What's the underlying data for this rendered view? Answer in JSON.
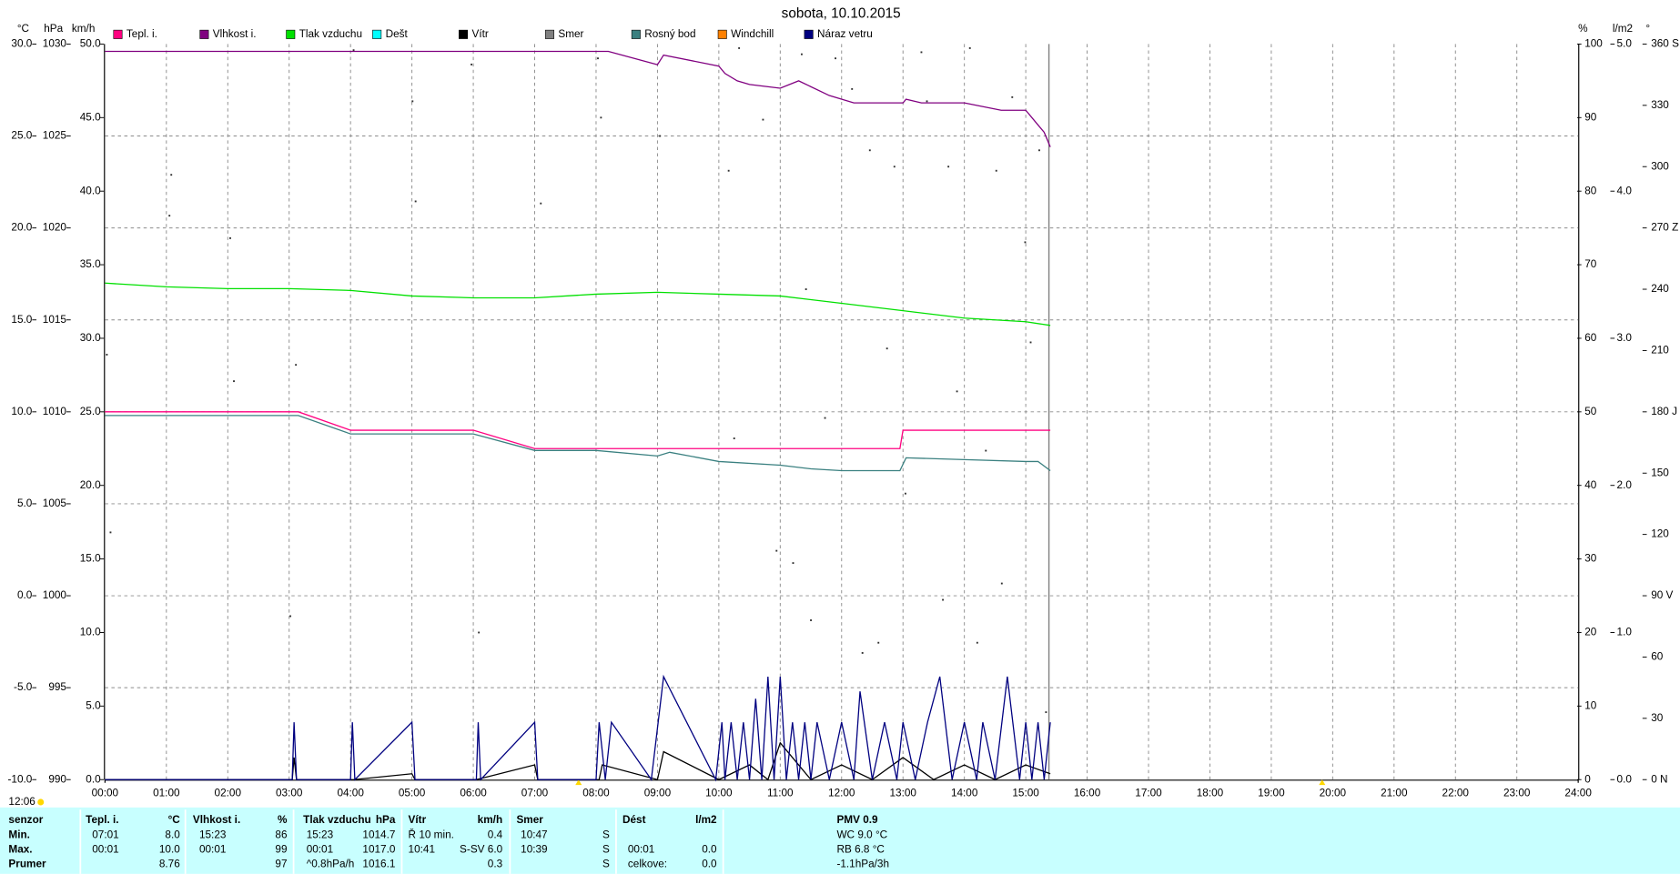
{
  "chart_data": {
    "type": "line",
    "title": "sobota, 10.10.2015",
    "xlim": [
      0,
      24
    ],
    "xgrid": true,
    "xticks": [
      {
        "value": 0,
        "label": "00:00"
      },
      {
        "value": 1,
        "label": "01:00"
      },
      {
        "value": 2,
        "label": "02:00"
      },
      {
        "value": 3,
        "label": "03:00"
      },
      {
        "value": 4,
        "label": "04:00"
      },
      {
        "value": 5,
        "label": "05:00"
      },
      {
        "value": 6,
        "label": "06:00"
      },
      {
        "value": 7,
        "label": "07:00"
      },
      {
        "value": 8,
        "label": "08:00"
      },
      {
        "value": 9,
        "label": "09:00"
      },
      {
        "value": 10,
        "label": "10:00"
      },
      {
        "value": 11,
        "label": "11:00"
      },
      {
        "value": 12,
        "label": "12:00"
      },
      {
        "value": 13,
        "label": "13:00"
      },
      {
        "value": 14,
        "label": "14:00"
      },
      {
        "value": 15,
        "label": "15:00"
      },
      {
        "value": 16,
        "label": "16:00"
      },
      {
        "value": 17,
        "label": "17:00"
      },
      {
        "value": 18,
        "label": "18:00"
      },
      {
        "value": 19,
        "label": "19:00"
      },
      {
        "value": 20,
        "label": "20:00"
      },
      {
        "value": 21,
        "label": "21:00"
      },
      {
        "value": 22,
        "label": "22:00"
      },
      {
        "value": 23,
        "label": "23:00"
      },
      {
        "value": 24,
        "label": "24:00"
      }
    ],
    "axes": [
      {
        "title": "°C",
        "color": "#ff0080",
        "side": "left",
        "grid": true,
        "lim": [
          -10,
          30
        ],
        "ticks": [
          {
            "value": -10,
            "label": "-10.0"
          },
          {
            "value": -5,
            "label": "-5.0"
          },
          {
            "value": 0,
            "label": "0.0"
          },
          {
            "value": 5,
            "label": "5.0"
          },
          {
            "value": 10,
            "label": "10.0"
          },
          {
            "value": 15,
            "label": "15.0"
          },
          {
            "value": 20,
            "label": "20.0"
          },
          {
            "value": 25,
            "label": "25.0"
          },
          {
            "value": 30,
            "label": "30.0"
          }
        ]
      },
      {
        "title": "hPa",
        "color": "#00c000",
        "side": "left",
        "lim": [
          990,
          1030
        ],
        "ticks": [
          990,
          995,
          1000,
          1005,
          1010,
          1015,
          1020,
          1025,
          1030
        ]
      },
      {
        "title": "km/h",
        "color": "#000000",
        "side": "left",
        "lim": [
          0,
          50
        ],
        "ticks": [
          {
            "value": 0,
            "label": "0.0"
          },
          {
            "value": 5,
            "label": "5.0"
          },
          {
            "value": 10,
            "label": "10.0"
          },
          {
            "value": 15,
            "label": "15.0"
          },
          {
            "value": 20,
            "label": "20.0"
          },
          {
            "value": 25,
            "label": "25.0"
          },
          {
            "value": 30,
            "label": "30.0"
          },
          {
            "value": 35,
            "label": "35.0"
          },
          {
            "value": 40,
            "label": "40.0"
          },
          {
            "value": 45,
            "label": "45.0"
          },
          {
            "value": 50,
            "label": "50.0"
          }
        ]
      },
      {
        "title": "%",
        "color": "#800080",
        "side": "right",
        "lim": [
          0,
          100
        ],
        "ticks": [
          0,
          10,
          20,
          30,
          40,
          50,
          60,
          70,
          80,
          90,
          100
        ]
      },
      {
        "title": "l/m2",
        "color": "#00c8c8",
        "side": "right",
        "lim": [
          0,
          5
        ],
        "ticks": [
          {
            "value": 0,
            "label": "0.0"
          },
          {
            "value": 1,
            "label": "1.0"
          },
          {
            "value": 2,
            "label": "2.0"
          },
          {
            "value": 3,
            "label": "3.0"
          },
          {
            "value": 4,
            "label": "4.0"
          },
          {
            "value": 5,
            "label": "5.0"
          }
        ]
      },
      {
        "title": "°",
        "color": "#606060",
        "side": "right",
        "lim": [
          0,
          360
        ],
        "ticks": [
          {
            "value": 0,
            "label": "0 N"
          },
          30,
          60,
          {
            "value": 90,
            "label": "90 V"
          },
          120,
          150,
          {
            "value": 180,
            "label": "180 J"
          },
          210,
          240,
          {
            "value": 270,
            "label": "270 Z"
          },
          300,
          330,
          {
            "value": 360,
            "label": "360 S"
          }
        ]
      }
    ],
    "series": [
      {
        "name": "Tepl. i.",
        "color": "#ff0080",
        "axis": 0,
        "x": [
          0,
          3.15,
          4,
          6,
          7,
          12.95,
          13,
          15.4
        ],
        "values": [
          10.0,
          10.0,
          9.0,
          9.0,
          8.0,
          8.0,
          9.0,
          9.0
        ]
      },
      {
        "name": "Vlhkost i.",
        "color": "#800080",
        "axis": 3,
        "x": [
          0,
          8.2,
          9.0,
          9.1,
          10.0,
          10.1,
          10.3,
          10.5,
          11.0,
          11.3,
          11.8,
          12.2,
          13.0,
          13.05,
          13.3,
          14.0,
          14.6,
          15.0,
          15.2,
          15.3,
          15.4
        ],
        "values": [
          99,
          99,
          97.2,
          98.5,
          97,
          96,
          95,
          94.5,
          94,
          95,
          93,
          92,
          92,
          92.5,
          92,
          92,
          91,
          91,
          89,
          88,
          86
        ]
      },
      {
        "name": "Tlak vzduchu",
        "color": "#00e000",
        "axis": 1,
        "x": [
          0,
          1,
          2,
          3,
          4,
          5,
          6,
          7,
          8,
          9,
          10,
          11,
          12,
          13,
          14,
          15,
          15.4
        ],
        "values": [
          1017.0,
          1016.8,
          1016.7,
          1016.7,
          1016.6,
          1016.3,
          1016.2,
          1016.2,
          1016.4,
          1016.5,
          1016.4,
          1016.3,
          1015.9,
          1015.5,
          1015.1,
          1014.9,
          1014.7
        ]
      },
      {
        "name": "Dešt",
        "color": "#00ffff",
        "axis": 4,
        "x": [],
        "values": []
      },
      {
        "name": "Vítr",
        "color": "#000000",
        "axis": 2,
        "x": [
          0,
          3.05,
          3.08,
          3.12,
          4.05,
          5.0,
          5.05,
          6.05,
          7.0,
          7.05,
          8.05,
          8.1,
          9.0,
          9.1,
          10.0,
          10.5,
          10.8,
          11.0,
          11.5,
          12.0,
          12.5,
          13.0,
          13.5,
          14.0,
          14.5,
          15.0,
          15.4
        ],
        "values": [
          0,
          0,
          1.5,
          0,
          0,
          0.4,
          0,
          0,
          1.0,
          0,
          0,
          1.0,
          0,
          1.9,
          0,
          1.0,
          0,
          2.5,
          0,
          1.0,
          0,
          1.5,
          0,
          1.0,
          0,
          1.0,
          0.4
        ]
      },
      {
        "name": "Smer",
        "color": "#808080",
        "axis": 5,
        "type": "scatter",
        "x": [
          0.03,
          0.09,
          1.08,
          1.05,
          2.04,
          2.1,
          3.02,
          3.11,
          4.05,
          5.01,
          5.06,
          5.97,
          6.09,
          7.1,
          8.03,
          8.08,
          9.04,
          10.16,
          10.25,
          10.33,
          10.72,
          10.94,
          11.21,
          11.35,
          11.42,
          11.5,
          11.73,
          11.9,
          12.17,
          12.34,
          12.46,
          12.6,
          12.74,
          12.86,
          13.04,
          13.3,
          13.39,
          13.65,
          13.74,
          13.88,
          14.09,
          14.21,
          14.35,
          14.52,
          14.61,
          14.78,
          14.99,
          15.08,
          15.22,
          15.33
        ],
        "values": [
          208,
          121,
          296,
          276,
          265,
          195,
          80,
          203,
          357,
          332,
          283,
          350,
          72,
          282,
          353,
          324,
          315,
          298,
          167,
          358,
          323,
          112,
          106,
          355,
          240,
          78,
          177,
          353,
          338,
          62,
          308,
          67,
          211,
          300,
          140,
          356,
          332,
          88,
          300,
          190,
          358,
          67,
          161,
          298,
          96,
          334,
          263,
          214,
          308,
          33
        ]
      },
      {
        "name": "Rosný bod",
        "color": "#3a8080",
        "axis": 0,
        "x": [
          0,
          3.15,
          4,
          6,
          7,
          8,
          9,
          9.2,
          10,
          11,
          11.5,
          12,
          12.95,
          13.05,
          14,
          15,
          15.2,
          15.4
        ],
        "values": [
          9.8,
          9.8,
          8.8,
          8.8,
          7.9,
          7.9,
          7.6,
          7.8,
          7.3,
          7.1,
          6.9,
          6.8,
          6.8,
          7.5,
          7.4,
          7.3,
          7.3,
          6.8
        ]
      },
      {
        "name": "Windchill",
        "color": "#ff8000",
        "axis": 0,
        "x": [],
        "values": []
      },
      {
        "name": "Náraz vetru",
        "color": "#000080",
        "axis": 2,
        "x": [
          0,
          3.05,
          3.08,
          3.12,
          4.0,
          4.03,
          4.07,
          5.0,
          5.05,
          6.05,
          6.08,
          6.12,
          7.0,
          7.05,
          8.0,
          8.05,
          8.15,
          8.25,
          8.9,
          9.1,
          9.95,
          10.05,
          10.1,
          10.2,
          10.3,
          10.4,
          10.5,
          10.6,
          10.7,
          10.8,
          10.9,
          11.0,
          11.1,
          11.2,
          11.3,
          11.4,
          11.5,
          11.6,
          11.8,
          12.0,
          12.2,
          12.3,
          12.5,
          12.7,
          12.9,
          13.0,
          13.2,
          13.4,
          13.6,
          13.8,
          14.0,
          14.2,
          14.3,
          14.5,
          14.7,
          14.9,
          15.0,
          15.1,
          15.2,
          15.3,
          15.4
        ],
        "values": [
          0,
          0,
          3.9,
          0,
          0,
          3.9,
          0,
          3.9,
          0,
          0,
          3.9,
          0,
          3.9,
          0,
          0,
          3.9,
          0,
          3.9,
          0,
          7.0,
          0,
          3.9,
          0,
          3.9,
          0,
          3.9,
          0,
          5.5,
          0,
          7.0,
          0,
          7.0,
          0,
          3.9,
          0,
          3.9,
          0,
          3.9,
          0,
          3.9,
          0,
          6.0,
          0,
          3.9,
          0,
          3.9,
          0,
          3.9,
          7.0,
          0,
          3.9,
          0,
          3.9,
          0,
          7.0,
          0,
          3.9,
          0,
          3.9,
          0,
          3.9
        ]
      }
    ]
  },
  "time_label": "12:06",
  "stats": {
    "header": [
      "senzor",
      "Tepl. i.",
      "°C",
      "Vlhkost i.",
      "%",
      "Tlak vzduchu",
      "hPa",
      "Vítr",
      "km/h",
      "Smer",
      null,
      "Dést",
      "l/m2",
      "PMV 0.9"
    ],
    "rows": [
      [
        "Min.",
        "07:01",
        "8.0",
        "15:23",
        "86",
        "15:23",
        "1014.7",
        "Ř 10 min.",
        "0.4",
        "10:47",
        "S",
        null,
        null,
        "WC 9.0 °C"
      ],
      [
        "Max.",
        "00:01",
        "10.0",
        "00:01",
        "99",
        "00:01",
        "1017.0",
        "10:41",
        "S-SV 6.0",
        "10:39",
        "S",
        "00:01",
        "0.0",
        "RB 6.8 °C"
      ],
      [
        "Prumer",
        null,
        "8.76",
        null,
        "97",
        "^0.8hPa/h",
        "1016.1",
        null,
        "0.3",
        null,
        "S",
        "celkove:",
        "0.0",
        "-1.1hPa/3h"
      ]
    ]
  }
}
